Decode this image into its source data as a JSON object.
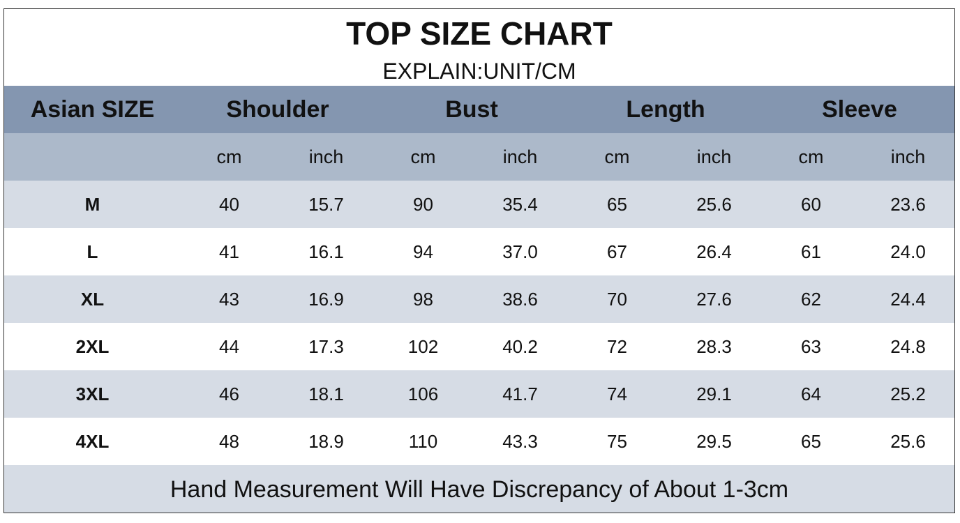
{
  "title": "TOP SIZE CHART",
  "subtitle": "EXPLAIN:UNIT/CM",
  "table": {
    "size_header": "Asian SIZE",
    "groups": [
      "Shoulder",
      "Bust",
      "Length",
      "Sleeve"
    ],
    "units": [
      "cm",
      "inch",
      "cm",
      "inch",
      "cm",
      "inch",
      "cm",
      "inch"
    ],
    "rows": [
      [
        "M",
        "40",
        "15.7",
        "90",
        "35.4",
        "65",
        "25.6",
        "60",
        "23.6"
      ],
      [
        "L",
        "41",
        "16.1",
        "94",
        "37.0",
        "67",
        "26.4",
        "61",
        "24.0"
      ],
      [
        "XL",
        "43",
        "16.9",
        "98",
        "38.6",
        "70",
        "27.6",
        "62",
        "24.4"
      ],
      [
        "2XL",
        "44",
        "17.3",
        "102",
        "40.2",
        "72",
        "28.3",
        "63",
        "24.8"
      ],
      [
        "3XL",
        "46",
        "18.1",
        "106",
        "41.7",
        "74",
        "29.1",
        "64",
        "25.2"
      ],
      [
        "4XL",
        "48",
        "18.9",
        "110",
        "43.3",
        "75",
        "29.5",
        "65",
        "25.6"
      ]
    ]
  },
  "footer": "Hand Measurement Will Have Discrepancy of About 1-3cm"
}
